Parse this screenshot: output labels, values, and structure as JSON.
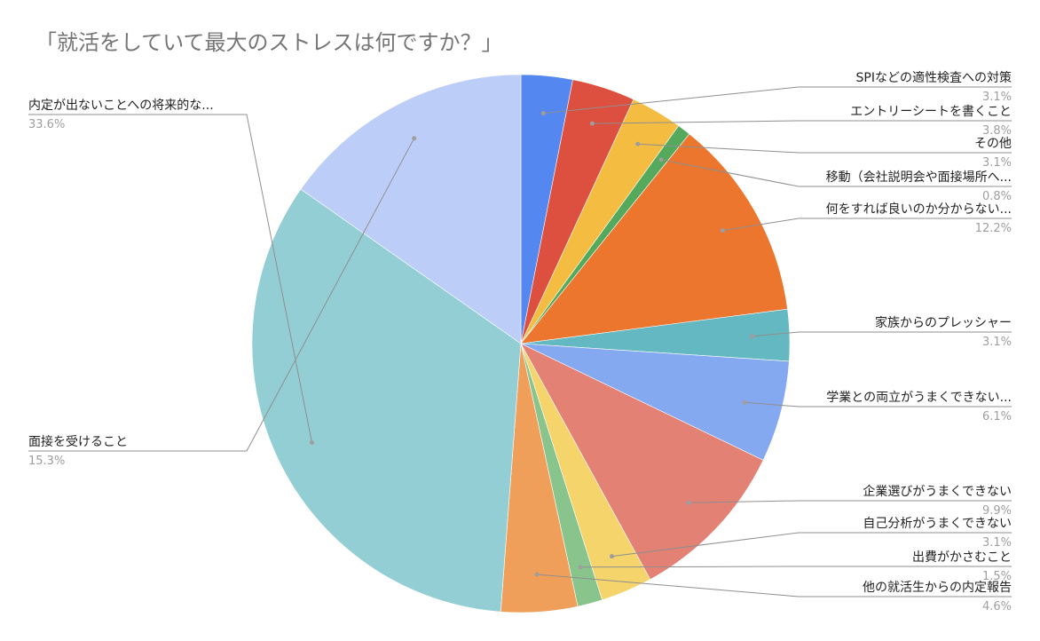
{
  "chart_data": {
    "type": "pie",
    "title": "「就活をしていて最大のストレスは何ですか？」",
    "slices": [
      {
        "label": "SPIなどの適性検査への対策",
        "value": 3.1,
        "value_label": "3.1%",
        "color": "#5487ef"
      },
      {
        "label": "エントリーシートを書くこと",
        "value": 3.8,
        "value_label": "3.8%",
        "color": "#dd4f3e"
      },
      {
        "label": "その他",
        "value": 3.1,
        "value_label": "3.1%",
        "color": "#f4bd42"
      },
      {
        "label": "移動（会社説明会や面接場所へ...",
        "value": 0.8,
        "value_label": "0.8%",
        "color": "#55a95c"
      },
      {
        "label": "何をすれば良いのか分からない...",
        "value": 12.2,
        "value_label": "12.2%",
        "color": "#ec762d"
      },
      {
        "label": "家族からのプレッシャー",
        "value": 3.1,
        "value_label": "3.1%",
        "color": "#64b8c2"
      },
      {
        "label": "学業との両立がうまくできない...",
        "value": 6.1,
        "value_label": "6.1%",
        "color": "#85a9f1"
      },
      {
        "label": "企業選びがうまくできない",
        "value": 9.9,
        "value_label": "9.9%",
        "color": "#e38175"
      },
      {
        "label": "自己分析がうまくできない",
        "value": 3.1,
        "value_label": "3.1%",
        "color": "#f5d46c"
      },
      {
        "label": "出費がかさむこと",
        "value": 1.5,
        "value_label": "1.5%",
        "color": "#88c48c"
      },
      {
        "label": "他の就活生からの内定報告",
        "value": 4.6,
        "value_label": "4.6%",
        "color": "#f09f5b"
      },
      {
        "label": "内定が出ないことへの将来的な...",
        "value": 33.6,
        "value_label": "33.6%",
        "color": "#93ced5"
      },
      {
        "label": "面接を受けること",
        "value": 15.3,
        "value_label": "15.3%",
        "color": "#bccef8"
      }
    ],
    "legend": "none"
  }
}
